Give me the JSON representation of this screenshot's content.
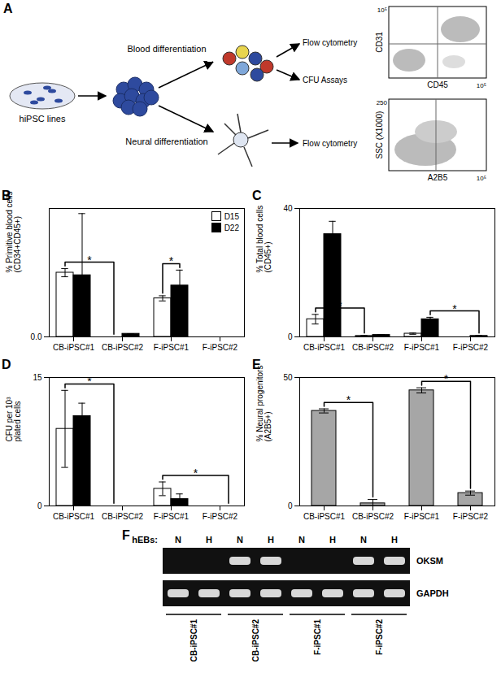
{
  "diagram": {
    "panel": "A",
    "source": "hiPSC lines",
    "branches": [
      {
        "label": "Blood differentiation",
        "outputs": [
          "Flow cytometry",
          "CFU Assays"
        ]
      },
      {
        "label": "Neural differentiation",
        "outputs": [
          "Flow cytometry"
        ]
      }
    ],
    "plots": [
      {
        "y_label": "CD31",
        "x_label": "CD45",
        "y_tick": "10⁵",
        "x_tick": "10⁵"
      },
      {
        "y_label": "SSC (X1000)",
        "x_label": "A2B5",
        "y_tick": "250",
        "x_tick": "10⁵"
      }
    ]
  },
  "chart_data": [
    {
      "panel": "B",
      "type": "bar",
      "ylabel": "% Primitive blood cells\n(CD34+CD45+)",
      "categories": [
        "CB-iPSC#1",
        "CB-iPSC#2",
        "F-iPSC#1",
        "F-iPSC#2"
      ],
      "series": [
        {
          "name": "D15",
          "color": "#ffffff",
          "values": [
            1.25,
            0,
            0.75,
            0
          ],
          "errors": [
            0.08,
            0,
            0.05,
            0
          ]
        },
        {
          "name": "D22",
          "color": "#000000",
          "values": [
            1.2,
            0.06,
            1.0,
            0
          ],
          "errors": [
            1.2,
            0,
            0.3,
            0
          ]
        }
      ],
      "ylim": [
        0,
        2.5
      ],
      "yticks": [
        0
      ],
      "legend": "top-right",
      "significance": [
        {
          "label": "*",
          "from": {
            "category": "CB-iPSC#1",
            "series": "D15"
          },
          "to": {
            "category": "CB-iPSC#2",
            "series": "D15"
          }
        },
        {
          "label": "*",
          "from": {
            "category": "F-iPSC#1",
            "series": "D15"
          },
          "to": {
            "category": "F-iPSC#1",
            "series": "D22"
          }
        }
      ]
    },
    {
      "panel": "C",
      "type": "bar",
      "ylabel": "% Total blood cells\n(CD45+)",
      "categories": [
        "CB-iPSC#1",
        "CB-iPSC#2",
        "F-iPSC#1",
        "F-iPSC#2"
      ],
      "series": [
        {
          "name": "D15",
          "color": "#ffffff",
          "values": [
            5.5,
            0.3,
            1,
            0
          ],
          "errors": [
            1.5,
            0.1,
            0.2,
            0
          ]
        },
        {
          "name": "D22",
          "color": "#000000",
          "values": [
            32,
            0.6,
            5.5,
            0.3
          ],
          "errors": [
            4,
            0.1,
            0.6,
            0.1
          ]
        }
      ],
      "ylim": [
        0,
        40
      ],
      "yticks": [
        0,
        40
      ],
      "significance": [
        {
          "label": "*",
          "from": {
            "category": "CB-iPSC#1",
            "series": "D15"
          },
          "to": {
            "category": "CB-iPSC#2",
            "series": "D15"
          }
        },
        {
          "label": "*",
          "from": {
            "category": "F-iPSC#1",
            "series": "D22"
          },
          "to": {
            "category": "F-iPSC#2",
            "series": "D22"
          }
        }
      ]
    },
    {
      "panel": "D",
      "type": "bar",
      "ylabel": "CFU per 10³\nplated cells",
      "categories": [
        "CB-iPSC#1",
        "CB-iPSC#2",
        "F-iPSC#1",
        "F-iPSC#2"
      ],
      "series": [
        {
          "name": "D15",
          "color": "#ffffff",
          "values": [
            9,
            0,
            2,
            0
          ],
          "errors": [
            4.5,
            0,
            0.8,
            0
          ]
        },
        {
          "name": "D22",
          "color": "#000000",
          "values": [
            10.5,
            0,
            0.8,
            0
          ],
          "errors": [
            1.5,
            0,
            0.6,
            0
          ]
        }
      ],
      "ylim": [
        0,
        15
      ],
      "yticks": [
        0,
        15
      ],
      "significance": [
        {
          "label": "*",
          "from": {
            "category": "CB-iPSC#1",
            "series": "D15"
          },
          "to": {
            "category": "CB-iPSC#2",
            "series": "D15"
          }
        },
        {
          "label": "*",
          "from": {
            "category": "F-iPSC#1",
            "series": "D15"
          },
          "to": {
            "category": "F-iPSC#2",
            "series": "D22"
          }
        }
      ]
    },
    {
      "panel": "E",
      "type": "bar",
      "ylabel": "% Neural progenitors\n(A2B5+)",
      "categories": [
        "CB-iPSC#1",
        "CB-iPSC#2",
        "F-iPSC#1",
        "F-iPSC#2"
      ],
      "series": [
        {
          "name": "A2B5+",
          "color": "#a6a6a6",
          "values": [
            37,
            1,
            45,
            5
          ],
          "errors": [
            0.8,
            1.5,
            1,
            0.8
          ]
        }
      ],
      "ylim": [
        0,
        50
      ],
      "yticks": [
        0,
        50
      ],
      "significance": [
        {
          "label": "*",
          "from": {
            "category": "CB-iPSC#1"
          },
          "to": {
            "category": "CB-iPSC#2"
          }
        },
        {
          "label": "*",
          "from": {
            "category": "F-iPSC#1"
          },
          "to": {
            "category": "F-iPSC#2"
          }
        }
      ]
    }
  ],
  "gel": {
    "panel": "F",
    "prefix": "hEBs:",
    "lanes": [
      "N",
      "H",
      "N",
      "H",
      "N",
      "H",
      "N",
      "H"
    ],
    "groups": [
      "CB-iPSC#1",
      "CB-iPSC#2",
      "F-iPSC#1",
      "F-iPSC#2"
    ],
    "bands": [
      {
        "name": "OKSM",
        "present": [
          false,
          false,
          true,
          true,
          false,
          false,
          true,
          true
        ]
      },
      {
        "name": "GAPDH",
        "present": [
          true,
          true,
          true,
          true,
          true,
          true,
          true,
          true
        ]
      }
    ]
  }
}
